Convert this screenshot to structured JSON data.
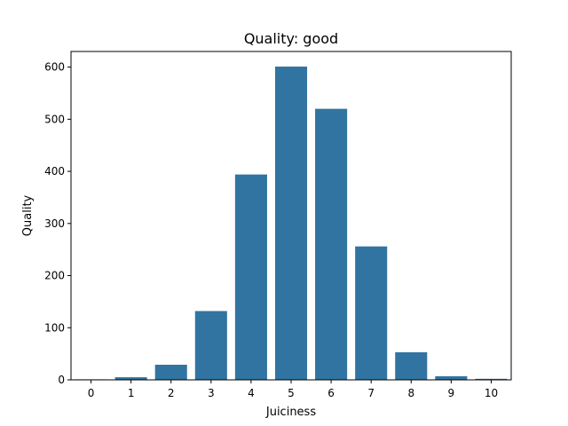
{
  "chart_data": {
    "type": "bar",
    "title": "Quality: good",
    "xlabel": "Juiciness",
    "ylabel": "Quality",
    "categories": [
      "0",
      "1",
      "2",
      "3",
      "4",
      "5",
      "6",
      "7",
      "8",
      "9",
      "10"
    ],
    "values": [
      1,
      5,
      29,
      132,
      394,
      601,
      520,
      256,
      53,
      7,
      2
    ],
    "ylim": [
      0,
      630
    ],
    "yticks": [
      0,
      100,
      200,
      300,
      400,
      500,
      600
    ],
    "grid": false,
    "bar_color": "#3274a1"
  }
}
